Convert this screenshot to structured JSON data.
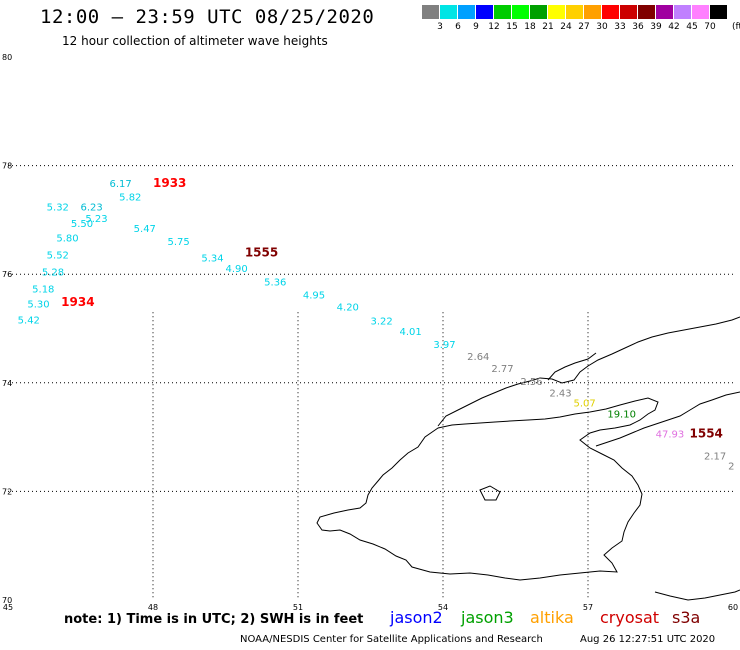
{
  "title": "12:00 – 23:59 UTC 08/25/2020",
  "subtitle": "12 hour collection of altimeter wave heights",
  "color_scale": {
    "unit": "(ft)",
    "bins": [
      {
        "label": "",
        "color": "#808080"
      },
      {
        "label": "3",
        "color": "#00e5e5"
      },
      {
        "label": "6",
        "color": "#00a0ff"
      },
      {
        "label": "9",
        "color": "#0000ff"
      },
      {
        "label": "12",
        "color": "#00cc00"
      },
      {
        "label": "15",
        "color": "#00ff00"
      },
      {
        "label": "18",
        "color": "#00a000"
      },
      {
        "label": "21",
        "color": "#ffff00"
      },
      {
        "label": "24",
        "color": "#ffd000"
      },
      {
        "label": "27",
        "color": "#ffa000"
      },
      {
        "label": "30",
        "color": "#ff0000"
      },
      {
        "label": "33",
        "color": "#cc0000"
      },
      {
        "label": "36",
        "color": "#800000"
      },
      {
        "label": "39",
        "color": "#a000a0"
      },
      {
        "label": "42",
        "color": "#c080ff"
      },
      {
        "label": "45",
        "color": "#ff80ff"
      },
      {
        "label": "70",
        "color": "#000000"
      }
    ]
  },
  "map": {
    "lon_range": [
      45,
      60
    ],
    "lat_range": [
      70,
      80
    ],
    "lon_ticks": [
      "45",
      "48",
      "51",
      "54",
      "57",
      "60"
    ],
    "lat_ticks": [
      "70",
      "72",
      "74",
      "76",
      "78",
      "80"
    ],
    "grid": true
  },
  "observations": [
    {
      "text": "6.17",
      "lon": 47.1,
      "lat": 77.61,
      "color": "#00bcd4"
    },
    {
      "text": "5.82",
      "lon": 47.3,
      "lat": 77.36,
      "color": "#00d4e8"
    },
    {
      "text": "5.32",
      "lon": 45.8,
      "lat": 77.17,
      "color": "#00d4e8"
    },
    {
      "text": "6.23",
      "lon": 46.5,
      "lat": 77.17,
      "color": "#00bcd4"
    },
    {
      "text": "5.23",
      "lon": 46.6,
      "lat": 76.96,
      "color": "#00d4e8"
    },
    {
      "text": "5.50",
      "lon": 46.3,
      "lat": 76.87,
      "color": "#00d4e8"
    },
    {
      "text": "5.47",
      "lon": 47.6,
      "lat": 76.78,
      "color": "#00d4e8"
    },
    {
      "text": "5.80",
      "lon": 46.0,
      "lat": 76.6,
      "color": "#00d4e8"
    },
    {
      "text": "5.75",
      "lon": 48.3,
      "lat": 76.54,
      "color": "#00d4e8"
    },
    {
      "text": "5.52",
      "lon": 45.8,
      "lat": 76.29,
      "color": "#00d4e8"
    },
    {
      "text": "5.34",
      "lon": 49.0,
      "lat": 76.23,
      "color": "#00d4e8"
    },
    {
      "text": "4.90",
      "lon": 49.5,
      "lat": 76.04,
      "color": "#00d4e8"
    },
    {
      "text": "5.28",
      "lon": 45.7,
      "lat": 75.98,
      "color": "#00d4e8"
    },
    {
      "text": "5.36",
      "lon": 50.3,
      "lat": 75.79,
      "color": "#00d4e8"
    },
    {
      "text": "5.18",
      "lon": 45.5,
      "lat": 75.66,
      "color": "#00d4e8"
    },
    {
      "text": "4.95",
      "lon": 51.1,
      "lat": 75.55,
      "color": "#00d4e8"
    },
    {
      "text": "5.30",
      "lon": 45.4,
      "lat": 75.39,
      "color": "#00d4e8"
    },
    {
      "text": "4.20",
      "lon": 51.8,
      "lat": 75.33,
      "color": "#00d4e8"
    },
    {
      "text": "5.42",
      "lon": 45.2,
      "lat": 75.09,
      "color": "#00d4e8"
    },
    {
      "text": "3.22",
      "lon": 52.5,
      "lat": 75.07,
      "color": "#00d4e8"
    },
    {
      "text": "4.01",
      "lon": 53.1,
      "lat": 74.88,
      "color": "#00d4e8"
    },
    {
      "text": "3.97",
      "lon": 53.8,
      "lat": 74.64,
      "color": "#00d4e8"
    },
    {
      "text": "2.64",
      "lon": 54.5,
      "lat": 74.42,
      "color": "#808080"
    },
    {
      "text": "2.77",
      "lon": 55.0,
      "lat": 74.2,
      "color": "#808080"
    },
    {
      "text": "2.56",
      "lon": 55.6,
      "lat": 73.96,
      "color": "#808080"
    },
    {
      "text": "2.43",
      "lon": 56.2,
      "lat": 73.75,
      "color": "#808080"
    },
    {
      "text": "5.07",
      "lon": 56.7,
      "lat": 73.56,
      "color": "#e0d000"
    },
    {
      "text": "19.10",
      "lon": 57.4,
      "lat": 73.36,
      "color": "#008000"
    },
    {
      "text": "47.93",
      "lon": 58.4,
      "lat": 72.99,
      "color": "#e070e0"
    },
    {
      "text": "2.17",
      "lon": 59.4,
      "lat": 72.59,
      "color": "#808080"
    },
    {
      "text": "2",
      "lon": 59.9,
      "lat": 72.4,
      "color": "#808080"
    }
  ],
  "time_labels": [
    {
      "text": "1933",
      "lon": 48.0,
      "lat": 77.61,
      "color": "#ff0000"
    },
    {
      "text": "1555",
      "lon": 49.9,
      "lat": 76.33,
      "color": "#800000"
    },
    {
      "text": "1934",
      "lon": 46.1,
      "lat": 75.41,
      "color": "#ff0000"
    },
    {
      "text": "1554",
      "lon": 59.1,
      "lat": 72.99,
      "color": "#800000"
    }
  ],
  "footer": {
    "note": "note:  1) Time is in UTC; 2) SWH is in feet",
    "satellites": [
      {
        "name": "jason2",
        "color": "#0000ff"
      },
      {
        "name": "jason3",
        "color": "#00a000"
      },
      {
        "name": "altika",
        "color": "#ffa000"
      },
      {
        "name": "cryosat",
        "color": "#d00000"
      },
      {
        "name": "s3a",
        "color": "#800000"
      }
    ],
    "credit": "NOAA/NESDIS Center for Satellite Applications and Research",
    "stamp": "Aug 26 12:27:51 UTC 2020"
  }
}
